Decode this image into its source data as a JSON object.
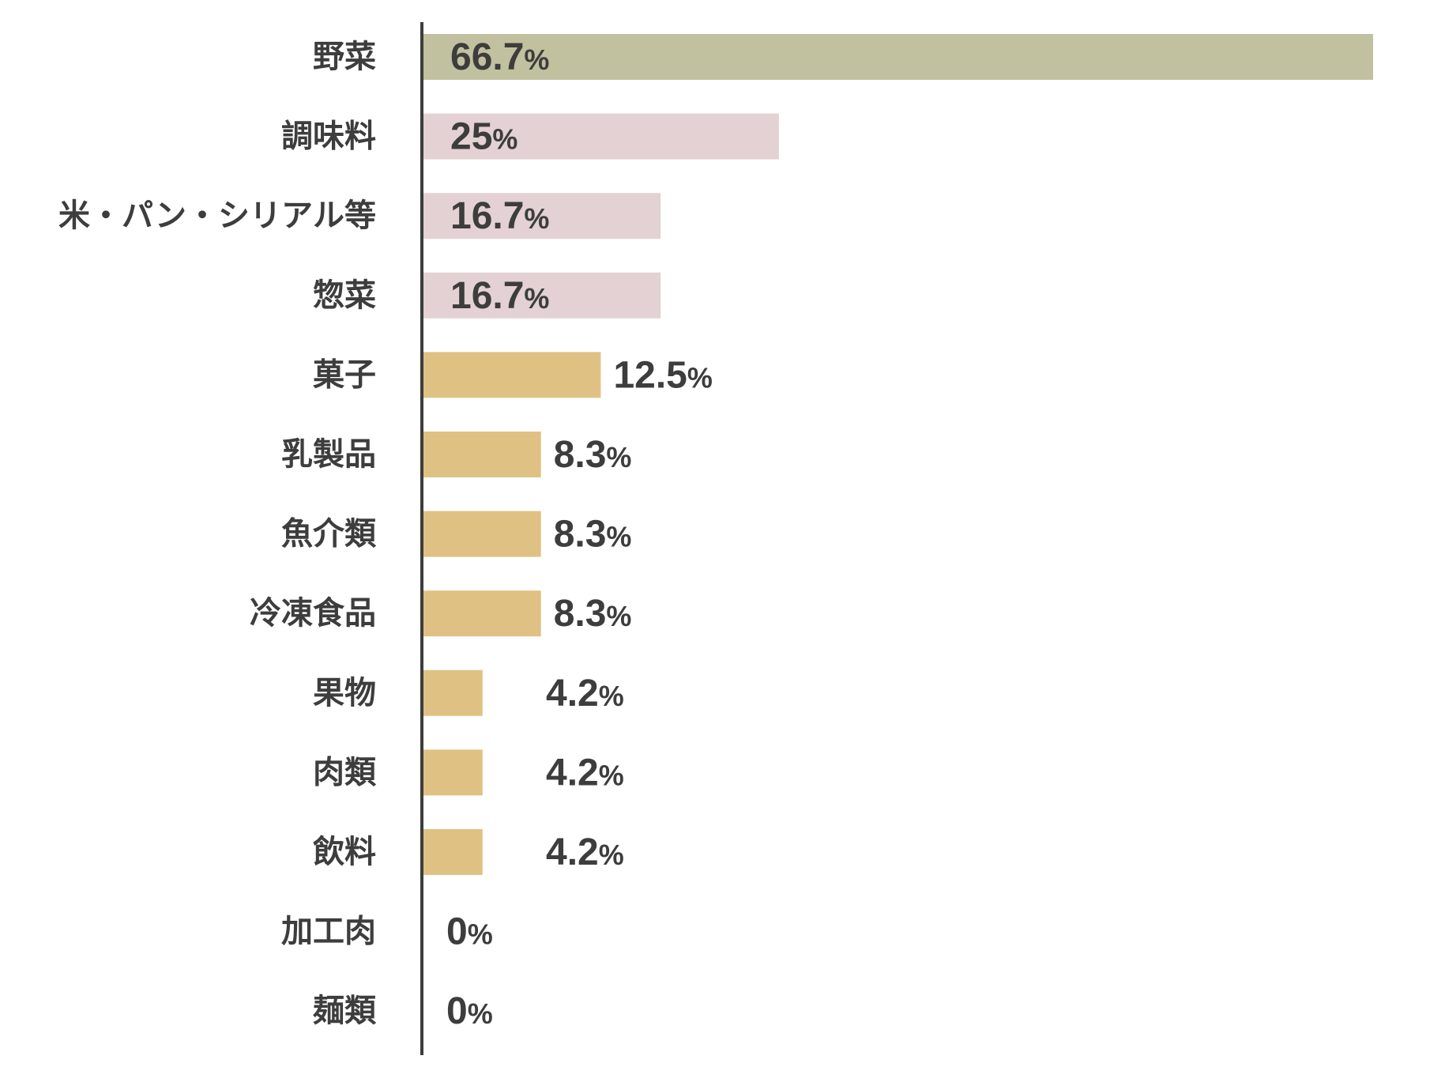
{
  "chart_data": {
    "type": "bar",
    "orientation": "horizontal",
    "categories": [
      "野菜",
      "調味料",
      "米・パン・シリアル等",
      "惣菜",
      "菓子",
      "乳製品",
      "魚介類",
      "冷凍食品",
      "果物",
      "肉類",
      "飲料",
      "加工肉",
      "麺類"
    ],
    "values": [
      66.7,
      25,
      16.7,
      16.7,
      12.5,
      8.3,
      8.3,
      8.3,
      4.2,
      4.2,
      4.2,
      0,
      0
    ],
    "value_labels": [
      "66.7",
      "25",
      "16.7",
      "16.7",
      "12.5",
      "8.3",
      "8.3",
      "8.3",
      "4.2",
      "4.2",
      "4.2",
      "0",
      "0"
    ],
    "unit": "%",
    "bar_colors": [
      "#c1c1a0",
      "#e3d1d3",
      "#e3d1d3",
      "#e3d1d3",
      "#dfc283",
      "#dfc283",
      "#dfc283",
      "#dfc283",
      "#dfc283",
      "#dfc283",
      "#dfc283",
      "#dfc283",
      "#dfc283"
    ],
    "label_inside_bar": [
      true,
      true,
      true,
      true,
      false,
      false,
      false,
      false,
      false,
      false,
      false,
      false,
      false
    ],
    "axis_color": "#3d3d3d",
    "text_color": "#3d3d3d",
    "title": "",
    "xlabel": "",
    "ylabel": "",
    "xlim": [
      0,
      66.7
    ],
    "grid": false,
    "legend": false
  }
}
